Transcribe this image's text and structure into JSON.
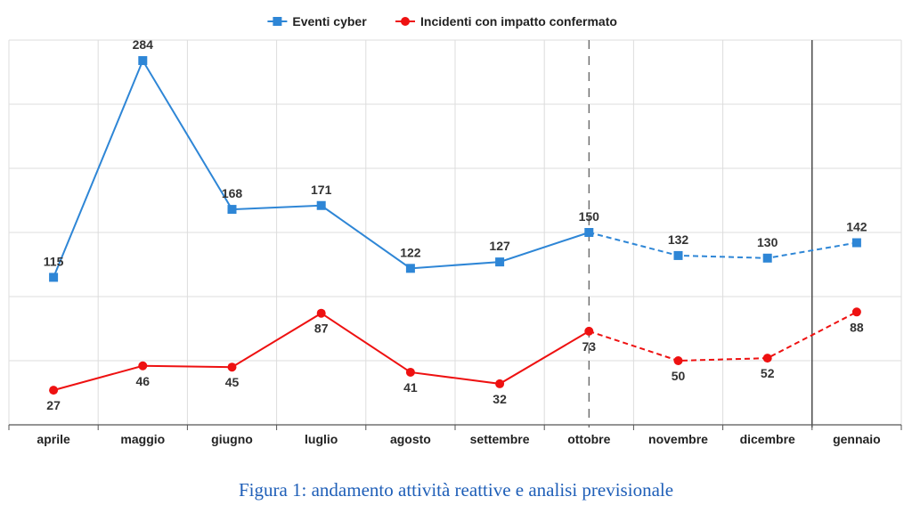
{
  "caption": "Figura 1: andamento attività reattive e analisi previsionale",
  "colors": {
    "series_blue": "#2e86d6",
    "series_red": "#ee1111",
    "grid": "#dddddd",
    "axis": "#555555"
  },
  "chart_data": {
    "type": "line",
    "categories": [
      "aprile",
      "maggio",
      "giugno",
      "luglio",
      "agosto",
      "settembre",
      "ottobre",
      "novembre",
      "dicembre",
      "gennaio"
    ],
    "series": [
      {
        "name": "Eventi cyber",
        "values": [
          115,
          284,
          168,
          171,
          122,
          127,
          150,
          132,
          130,
          142
        ],
        "color": "#2e86d6",
        "marker": "square"
      },
      {
        "name": "Incidenti con impatto confermato",
        "values": [
          27,
          46,
          45,
          87,
          41,
          32,
          73,
          50,
          52,
          88
        ],
        "color": "#ee1111",
        "marker": "circle"
      }
    ],
    "forecast_from_category": "ottobre",
    "vertical_markers": [
      {
        "category": "ottobre",
        "style": "dashed"
      },
      {
        "boundary_after": "dicembre",
        "style": "solid"
      }
    ],
    "ylim": [
      0,
      300
    ],
    "grid": true,
    "legend": "top-center",
    "xlabel": "",
    "ylabel": ""
  }
}
